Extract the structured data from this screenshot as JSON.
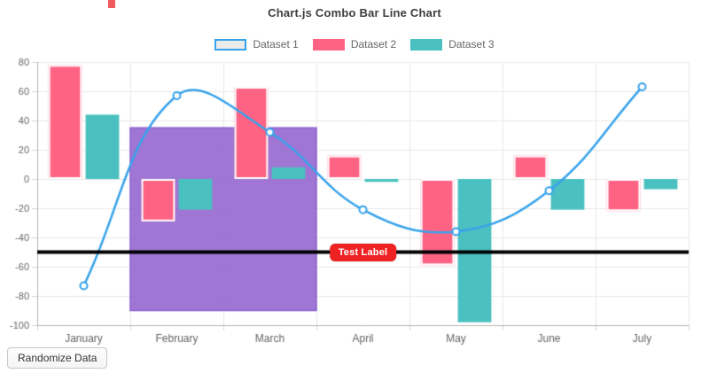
{
  "controls": {
    "randomize_label": "Randomize Data"
  },
  "legend": {
    "items": [
      {
        "label": "Dataset 1",
        "swatch_bg": "rgba(0,0,0,0.08)",
        "swatch_border": "#36a2eb"
      },
      {
        "label": "Dataset 2",
        "swatch_bg": "#ff6384",
        "swatch_border": "#ff6384"
      },
      {
        "label": "Dataset 3",
        "swatch_bg": "#4bc0c0",
        "swatch_border": "#4bc0c0"
      }
    ]
  },
  "artifact": {
    "color": "#f0595e"
  },
  "chart_data": {
    "type": "bar",
    "subtype": "combo-bar-line",
    "title": "Chart.js Combo Bar Line Chart",
    "categories": [
      "January",
      "February",
      "March",
      "April",
      "May",
      "June",
      "July"
    ],
    "series": [
      {
        "name": "Dataset 1",
        "type": "line",
        "color": "#36a2eb",
        "point_fill": "#ffffff",
        "line_width": 2.5,
        "point_radius": 4,
        "tension": 0.4,
        "values": [
          -73,
          57,
          32,
          -21,
          -36,
          -8,
          63
        ]
      },
      {
        "name": "Dataset 2",
        "type": "bar",
        "color": "#ff6384",
        "border_color": "#ffffff",
        "border_width": 2,
        "values": [
          78,
          -29,
          63,
          16,
          -59,
          16,
          -22
        ]
      },
      {
        "name": "Dataset 3",
        "type": "bar",
        "color": "#4bc0c0",
        "values": [
          44,
          -21,
          8,
          -2,
          -98,
          -21,
          -7
        ]
      }
    ],
    "xlabel": "",
    "ylabel": "",
    "y_axis": {
      "min": -100,
      "max": 80,
      "tick_step": 20,
      "tick_labels": [
        "80",
        "60",
        "40",
        "20",
        "0",
        "-20",
        "-40",
        "-60",
        "-80",
        "-100"
      ]
    },
    "grid": true,
    "legend_position": "top",
    "annotations": {
      "box": {
        "x_from": "February",
        "x_to": "March",
        "x_slot_from": 1,
        "x_slot_to": 3,
        "y_min": -90,
        "y_max": 35,
        "fill": "rgba(142,94,205,0.85)",
        "border": "#8a5fd0"
      },
      "line": {
        "y": -50,
        "color": "#000000",
        "width": 4,
        "label": {
          "text": "Test Label",
          "bg": "#ee2222",
          "text_color": "#ffffff"
        }
      }
    }
  }
}
